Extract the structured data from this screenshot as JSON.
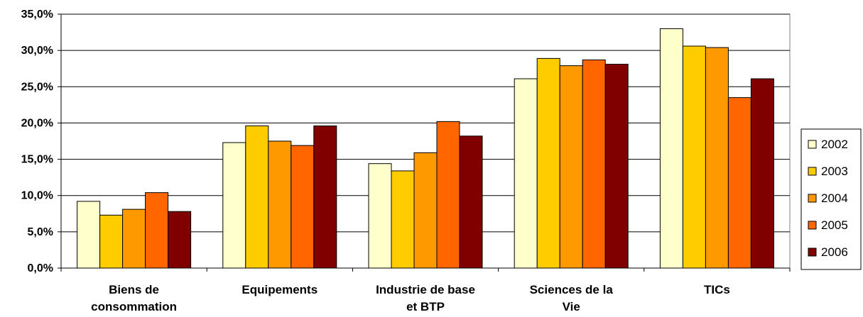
{
  "chart_data": {
    "type": "bar",
    "categories": [
      [
        "Biens de",
        "consommation"
      ],
      [
        "Equipements"
      ],
      [
        "Industrie de base",
        "et BTP"
      ],
      [
        "Sciences de la",
        "Vie"
      ],
      [
        "TICs"
      ]
    ],
    "series": [
      {
        "name": "2002",
        "color": "#FFFFCC",
        "values": [
          9.2,
          17.3,
          14.4,
          26.1,
          33.0
        ]
      },
      {
        "name": "2003",
        "color": "#FFCC00",
        "values": [
          7.3,
          19.6,
          13.4,
          28.9,
          30.6
        ]
      },
      {
        "name": "2004",
        "color": "#FF9900",
        "values": [
          8.1,
          17.5,
          15.9,
          27.9,
          30.4
        ]
      },
      {
        "name": "2005",
        "color": "#FF6600",
        "values": [
          10.4,
          16.9,
          20.2,
          28.7,
          23.5
        ]
      },
      {
        "name": "2006",
        "color": "#800000",
        "values": [
          7.8,
          19.6,
          18.2,
          28.1,
          26.1
        ]
      }
    ],
    "y_ticks": [
      "0,0%",
      "5,0%",
      "10,0%",
      "15,0%",
      "20,0%",
      "25,0%",
      "30,0%",
      "35,0%"
    ],
    "ylim": [
      0,
      35
    ],
    "y_tick_step": 5,
    "grid": true,
    "legend_position": "right"
  }
}
